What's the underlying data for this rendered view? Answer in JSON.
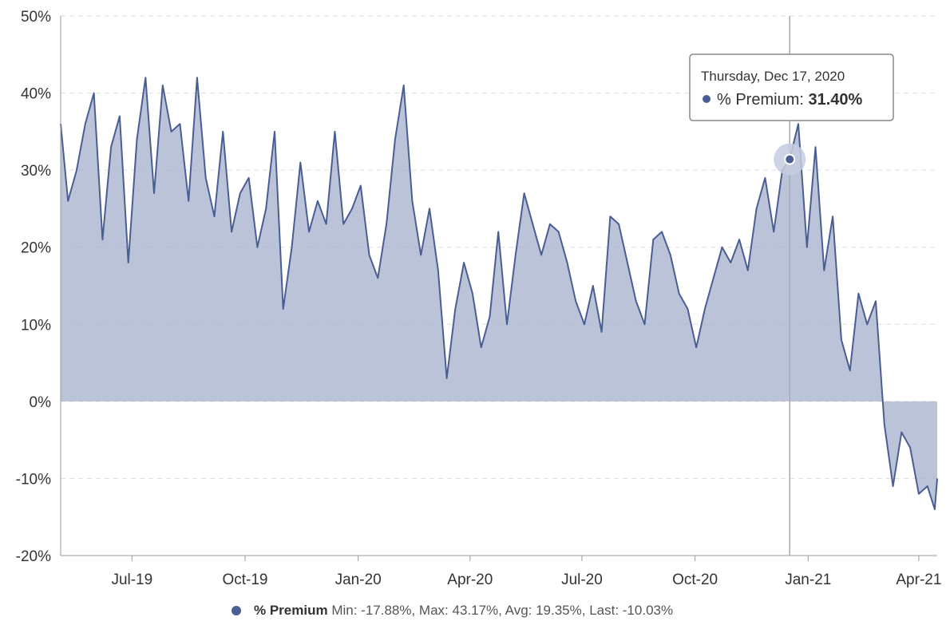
{
  "chart_data": {
    "type": "area",
    "title": "",
    "xlabel": "",
    "ylabel": "",
    "ylim": [
      -20,
      50
    ],
    "y_ticks": [
      -20,
      -10,
      0,
      10,
      20,
      30,
      40,
      50
    ],
    "y_tick_labels": [
      "-20%",
      "-10%",
      "0%",
      "10%",
      "20%",
      "30%",
      "40%",
      "50%"
    ],
    "x_range": [
      "2019-05-04",
      "2021-04-16"
    ],
    "x_ticks": [
      {
        "date": "2019-07-01",
        "label": "Jul-19"
      },
      {
        "date": "2019-10-01",
        "label": "Oct-19"
      },
      {
        "date": "2020-01-01",
        "label": "Jan-20"
      },
      {
        "date": "2020-04-01",
        "label": "Apr-20"
      },
      {
        "date": "2020-07-01",
        "label": "Jul-20"
      },
      {
        "date": "2020-10-01",
        "label": "Oct-20"
      },
      {
        "date": "2021-01-01",
        "label": "Jan-21"
      },
      {
        "date": "2021-04-01",
        "label": "Apr-21"
      }
    ],
    "grid": true,
    "series": [
      {
        "name": "% Premium",
        "color": "#4a5e94",
        "fill": "#a4afcb",
        "x": [
          "2019-05-04",
          "2019-05-10",
          "2019-05-17",
          "2019-05-24",
          "2019-05-31",
          "2019-06-07",
          "2019-06-14",
          "2019-06-21",
          "2019-06-28",
          "2019-07-05",
          "2019-07-12",
          "2019-07-19",
          "2019-07-26",
          "2019-08-02",
          "2019-08-09",
          "2019-08-16",
          "2019-08-23",
          "2019-08-30",
          "2019-09-06",
          "2019-09-13",
          "2019-09-20",
          "2019-09-27",
          "2019-10-04",
          "2019-10-11",
          "2019-10-18",
          "2019-10-25",
          "2019-11-01",
          "2019-11-08",
          "2019-11-15",
          "2019-11-22",
          "2019-11-29",
          "2019-12-06",
          "2019-12-13",
          "2019-12-20",
          "2019-12-27",
          "2020-01-03",
          "2020-01-10",
          "2020-01-17",
          "2020-01-24",
          "2020-01-31",
          "2020-02-07",
          "2020-02-14",
          "2020-02-21",
          "2020-02-28",
          "2020-03-06",
          "2020-03-13",
          "2020-03-20",
          "2020-03-27",
          "2020-04-03",
          "2020-04-10",
          "2020-04-17",
          "2020-04-24",
          "2020-05-01",
          "2020-05-08",
          "2020-05-15",
          "2020-05-22",
          "2020-05-29",
          "2020-06-05",
          "2020-06-12",
          "2020-06-19",
          "2020-06-26",
          "2020-07-03",
          "2020-07-10",
          "2020-07-17",
          "2020-07-24",
          "2020-07-31",
          "2020-08-07",
          "2020-08-14",
          "2020-08-21",
          "2020-08-28",
          "2020-09-04",
          "2020-09-11",
          "2020-09-18",
          "2020-09-25",
          "2020-10-02",
          "2020-10-09",
          "2020-10-16",
          "2020-10-23",
          "2020-10-30",
          "2020-11-06",
          "2020-11-13",
          "2020-11-20",
          "2020-11-27",
          "2020-12-04",
          "2020-12-11",
          "2020-12-17",
          "2020-12-24",
          "2020-12-31",
          "2021-01-07",
          "2021-01-14",
          "2021-01-21",
          "2021-01-28",
          "2021-02-04",
          "2021-02-11",
          "2021-02-18",
          "2021-02-25",
          "2021-03-04",
          "2021-03-11",
          "2021-03-18",
          "2021-03-25",
          "2021-04-01",
          "2021-04-08",
          "2021-04-14",
          "2021-04-16"
        ],
        "values": [
          36,
          26,
          30,
          36,
          40,
          21,
          33,
          37,
          18,
          34,
          42,
          27,
          41,
          35,
          36,
          26,
          42,
          29,
          24,
          35,
          22,
          27,
          29,
          20,
          25,
          35,
          12,
          20,
          31,
          22,
          26,
          23,
          35,
          23,
          25,
          28,
          19,
          16,
          23,
          34,
          41,
          26,
          19,
          25,
          17,
          3,
          12,
          18,
          14,
          7,
          11,
          22,
          10,
          19,
          27,
          23,
          19,
          23,
          22,
          18,
          13,
          10,
          15,
          9,
          24,
          23,
          18,
          13,
          10,
          21,
          22,
          19,
          14,
          12,
          7,
          12,
          16,
          20,
          18,
          21,
          17,
          25,
          29,
          22,
          30,
          31.4,
          36,
          20,
          33,
          17,
          24,
          8,
          4,
          14,
          10,
          13,
          -3,
          -11,
          -4,
          -6,
          -12,
          -11,
          -14,
          -10
        ]
      }
    ],
    "tooltip": {
      "date": "Thursday, Dec 17, 2020",
      "series_name": "% Premium:",
      "value_label": "31.40%",
      "x": "2020-12-17",
      "value": 31.4
    },
    "legend": {
      "placement": "bottom-center",
      "name": "% Premium",
      "stats": "Min: -17.88%, Max: 43.17%, Avg: 19.35%, Last: -10.03%"
    }
  }
}
